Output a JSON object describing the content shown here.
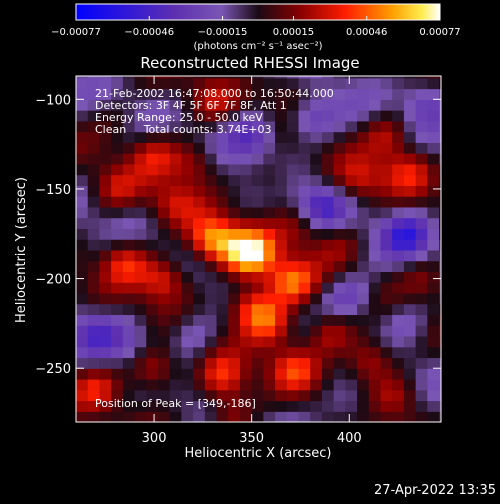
{
  "chart_data": {
    "type": "heatmap",
    "title": "Reconstructed RHESSI Image",
    "xlabel": "Heliocentric X (arcsec)",
    "ylabel": "Heliocentric Y (arcsec)",
    "xlim": [
      260,
      447
    ],
    "ylim": [
      -280,
      -87
    ],
    "x_ticks": [
      300,
      350,
      400
    ],
    "y_ticks": [
      -100,
      -150,
      -200,
      -250
    ],
    "x_tick_labels": [
      "300",
      "350",
      "400"
    ],
    "y_tick_labels": [
      "−100",
      "−150",
      "−200",
      "−250"
    ],
    "colorbar": {
      "min": -0.00077,
      "max": 0.00077,
      "tick_values": [
        -0.00077,
        -0.00046,
        -0.00015,
        0.00015,
        0.00046,
        0.00077
      ],
      "tick_labels": [
        "−0.00077",
        "−0.00046",
        "−0.00015",
        "0.00015",
        "0.00046",
        "0.00077"
      ],
      "units": "(photons cm⁻² s⁻¹ asec⁻²)"
    },
    "annotations": [
      "21-Feb-2002 16:47:08.000 to 16:50:44.000",
      "Detectors: 3F 4F 5F 6F 7F 8F, Att 1",
      "Energy Range: 25.0 - 50.0 keV",
      "Clean     Total counts: 3.74E+03"
    ],
    "peak": {
      "label": "Position of Peak = [349,-186]",
      "x": 349,
      "y": -186,
      "value": 0.00077
    },
    "sources": [
      {
        "x": 349,
        "y": -186,
        "value": 0.00077
      },
      {
        "x": 330,
        "y": -178,
        "value": 0.0006
      },
      {
        "x": 370,
        "y": -202,
        "value": 0.0005
      },
      {
        "x": 350,
        "y": -215,
        "value": 0.00045
      },
      {
        "x": 305,
        "y": -200,
        "value": 0.0004
      },
      {
        "x": 285,
        "y": -190,
        "value": 0.00038
      },
      {
        "x": 360,
        "y": -225,
        "value": 0.0004
      },
      {
        "x": 390,
        "y": -230,
        "value": 0.00035
      },
      {
        "x": 300,
        "y": -250,
        "value": 0.0004
      },
      {
        "x": 335,
        "y": -255,
        "value": 0.0004
      },
      {
        "x": 372,
        "y": -250,
        "value": 0.00035
      },
      {
        "x": 410,
        "y": -245,
        "value": 0.0004
      },
      {
        "x": 425,
        "y": -265,
        "value": 0.0003
      },
      {
        "x": 340,
        "y": -275,
        "value": 0.0003
      },
      {
        "x": 270,
        "y": -260,
        "value": 0.00028
      },
      {
        "x": 300,
        "y": -130,
        "value": 0.0003
      },
      {
        "x": 320,
        "y": -135,
        "value": 0.0003
      },
      {
        "x": 310,
        "y": -158,
        "value": 0.00025
      },
      {
        "x": 405,
        "y": -145,
        "value": 0.00028
      },
      {
        "x": 430,
        "y": -140,
        "value": 0.0003
      },
      {
        "x": 395,
        "y": -180,
        "value": 0.0002
      },
      {
        "x": 280,
        "y": -150,
        "value": 0.00025
      },
      {
        "x": 330,
        "y": -100,
        "value": 0.0002
      },
      {
        "x": 370,
        "y": -95,
        "value": 0.0002
      },
      {
        "x": 440,
        "y": -200,
        "value": 0.00025
      },
      {
        "x": 280,
        "y": -110,
        "value": 0.0001
      },
      {
        "x": 420,
        "y": -120,
        "value": 0.0003
      },
      {
        "x": 360,
        "y": -145,
        "value": 0.0002
      },
      {
        "x": 375,
        "y": -170,
        "value": 0.00025
      },
      {
        "x": 430,
        "y": -175,
        "value": -0.0004
      },
      {
        "x": 385,
        "y": -160,
        "value": -0.00035
      },
      {
        "x": 350,
        "y": -120,
        "value": -0.00035
      },
      {
        "x": 400,
        "y": -210,
        "value": -0.0003
      },
      {
        "x": 270,
        "y": -230,
        "value": -0.00025
      },
      {
        "x": 430,
        "y": -225,
        "value": -0.0002
      },
      {
        "x": 380,
        "y": -110,
        "value": -0.0003
      },
      {
        "x": 440,
        "y": -100,
        "value": -0.00025
      },
      {
        "x": 320,
        "y": -230,
        "value": -0.0002
      },
      {
        "x": 290,
        "y": -235,
        "value": -0.00015
      },
      {
        "x": 400,
        "y": -270,
        "value": -0.0002
      }
    ],
    "grid": false
  },
  "footer": {
    "timestamp": "27-Apr-2022 13:35"
  }
}
